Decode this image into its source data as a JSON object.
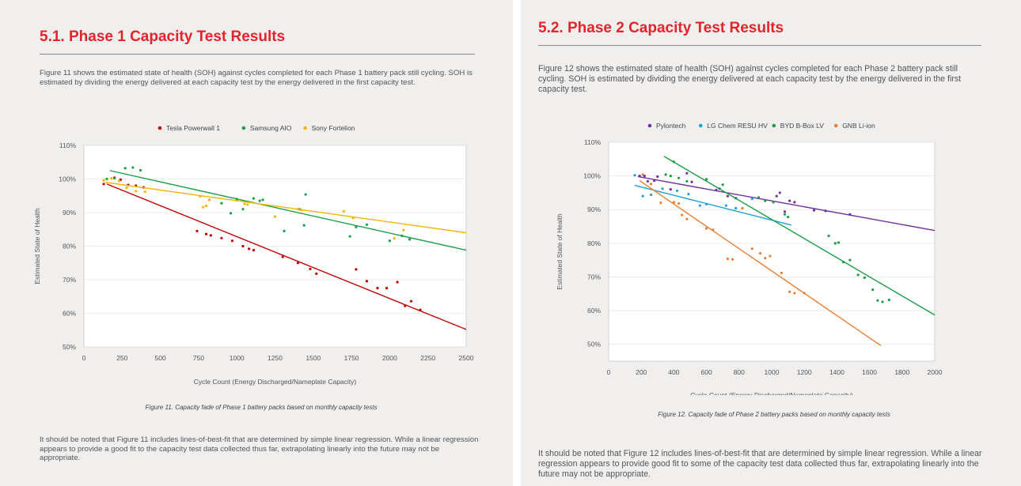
{
  "left": {
    "heading": "5.1. Phase 1 Capacity Test Results",
    "intro": "Figure 11 shows the estimated state of health (SOH) against cycles completed for each Phase 1 battery pack still cycling. SOH is estimated by dividing the energy delivered at each capacity test by the energy delivered in the first capacity test.",
    "caption": "Figure 11. Capacity fade of Phase 1 battery packs based on monthly capacity tests",
    "note": "It should be noted that Figure 11 includes lines-of-best-fit that are determined by simple linear regression. While a linear regression appears to provide a good fit to the capacity test data collected thus far, extrapolating linearly into the future may not be appropriate."
  },
  "right": {
    "heading": "5.2. Phase 2 Capacity Test Results",
    "intro": "Figure 12 shows the estimated state of health (SOH) against cycles completed for each Phase 2 battery pack still cycling. SOH is estimated by dividing the energy delivered at each capacity test by the energy delivered in the first capacity test.",
    "caption": "Figure 12. Capacity fade of Phase 2 battery packs based on monthly capacity tests",
    "note": "It should be noted that Figure 12 includes lines-of-best-fit that are determined by simple linear regression. While a linear regression appears to provide good fit to some of the capacity test data collected thus far, extrapolating linearly into the future may not be appropriate."
  },
  "chart_data": [
    {
      "type": "scatter",
      "title": "Figure 11",
      "xlabel": "Cycle Count (Energy Discharged/Nameplate Capacity)",
      "ylabel": "Estimated State of Health",
      "xlim": [
        0,
        2500
      ],
      "ylim": [
        50,
        110
      ],
      "xticks": [
        0,
        250,
        500,
        750,
        1000,
        1250,
        1500,
        1750,
        2000,
        2250,
        2500
      ],
      "xtick_labels": [
        "0",
        "250",
        "500",
        "750",
        "1000",
        "1250",
        "1500",
        "1750",
        "2000",
        "2250",
        "2500"
      ],
      "yticks": [
        50,
        60,
        70,
        80,
        90,
        100,
        110
      ],
      "ytick_labels": [
        "50%",
        "60%",
        "70%",
        "80%",
        "90%",
        "100%",
        "110%"
      ],
      "legend_position": "top",
      "series": [
        {
          "name": "Tesla Powerwall 1",
          "color": "#c00000",
          "fit": [
            [
              150,
              98.5
            ],
            [
              2500,
              55.2
            ]
          ],
          "points": [
            [
              130,
              98.5
            ],
            [
              200,
              100.4
            ],
            [
              240,
              99.8
            ],
            [
              290,
              98.2
            ],
            [
              340,
              98
            ],
            [
              390,
              97.5
            ],
            [
              740,
              84.5
            ],
            [
              800,
              83.6
            ],
            [
              830,
              83.2
            ],
            [
              900,
              82.4
            ],
            [
              970,
              81.6
            ],
            [
              1040,
              80
            ],
            [
              1080,
              79.2
            ],
            [
              1110,
              78.8
            ],
            [
              1300,
              76.8
            ],
            [
              1400,
              75
            ],
            [
              1480,
              73.2
            ],
            [
              1520,
              71.8
            ],
            [
              1780,
              73.1
            ],
            [
              1850,
              69.6
            ],
            [
              1920,
              67.5
            ],
            [
              1980,
              67.5
            ],
            [
              2050,
              69.3
            ],
            [
              2100,
              62.2
            ],
            [
              2140,
              63.6
            ],
            [
              2200,
              61
            ]
          ]
        },
        {
          "name": "Samsung AIO",
          "color": "#1a9e48",
          "fit": [
            [
              170,
              102.5
            ],
            [
              2500,
              78.8
            ]
          ],
          "points": [
            [
              150,
              100
            ],
            [
              200,
              100.2
            ],
            [
              270,
              103.2
            ],
            [
              320,
              103.4
            ],
            [
              370,
              102.6
            ],
            [
              900,
              92.8
            ],
            [
              960,
              89.8
            ],
            [
              1000,
              94
            ],
            [
              1040,
              91
            ],
            [
              1110,
              94.2
            ],
            [
              1150,
              93.5
            ],
            [
              1170,
              93.8
            ],
            [
              1310,
              84.5
            ],
            [
              1410,
              91
            ],
            [
              1440,
              86.2
            ],
            [
              1450,
              95.4
            ],
            [
              1740,
              82.9
            ],
            [
              1780,
              85.7
            ],
            [
              1850,
              86.4
            ],
            [
              2000,
              81.6
            ],
            [
              2080,
              83.1
            ],
            [
              2130,
              82
            ]
          ]
        },
        {
          "name": "Sony Fortelion",
          "color": "#f5b400",
          "fit": [
            [
              140,
              99
            ],
            [
              2500,
              84
            ]
          ],
          "points": [
            [
              130,
              99.6
            ],
            [
              180,
              100.2
            ],
            [
              230,
              99.4
            ],
            [
              280,
              97.4
            ],
            [
              340,
              96.4
            ],
            [
              400,
              96.2
            ],
            [
              760,
              94.8
            ],
            [
              780,
              91.6
            ],
            [
              800,
              92
            ],
            [
              820,
              93.8
            ],
            [
              1050,
              92.6
            ],
            [
              1070,
              92.4
            ],
            [
              1250,
              88.8
            ],
            [
              1400,
              91
            ],
            [
              1420,
              90.8
            ],
            [
              1700,
              90.4
            ],
            [
              1760,
              88.4
            ],
            [
              2030,
              82.3
            ],
            [
              2090,
              84.8
            ]
          ]
        }
      ]
    },
    {
      "type": "scatter",
      "title": "Figure 12",
      "xlabel": "Cycle Count (Energy Discharged/Nameplate Capacity)",
      "ylabel": "Estimated State of Health",
      "xlim": [
        0,
        2000
      ],
      "ylim": [
        45,
        110
      ],
      "xticks": [
        0,
        200,
        400,
        600,
        800,
        1000,
        1200,
        1400,
        1600,
        1800,
        2000
      ],
      "xtick_labels": [
        "0",
        "200",
        "400",
        "600",
        "800",
        "1000",
        "1200",
        "1400",
        "1600",
        "1800",
        "2000"
      ],
      "yticks": [
        50,
        60,
        70,
        80,
        90,
        100,
        110
      ],
      "ytick_labels": [
        "50%",
        "60%",
        "70%",
        "80%",
        "90%",
        "100%",
        "110%"
      ],
      "legend_position": "top",
      "series": [
        {
          "name": "Pylontech",
          "color": "#7030a0",
          "fit": [
            [
              180,
              99.8
            ],
            [
              2000,
              83.8
            ]
          ],
          "points": [
            [
              190,
              100
            ],
            [
              220,
              100
            ],
            [
              240,
              98.4
            ],
            [
              280,
              98.6
            ],
            [
              300,
              99.8
            ],
            [
              380,
              96
            ],
            [
              480,
              100.8
            ],
            [
              510,
              98.2
            ],
            [
              660,
              95.8
            ],
            [
              680,
              96.2
            ],
            [
              730,
              94
            ],
            [
              780,
              93.4
            ],
            [
              1030,
              94
            ],
            [
              1050,
              95
            ],
            [
              1080,
              89.4
            ],
            [
              1110,
              92.6
            ],
            [
              1140,
              92.2
            ],
            [
              1260,
              89.8
            ],
            [
              1330,
              89.6
            ],
            [
              1480,
              88.6
            ]
          ]
        },
        {
          "name": "LG Chem RESU HV",
          "color": "#1ea0dc",
          "fit": [
            [
              160,
              97.2
            ],
            [
              1120,
              85.4
            ]
          ],
          "points": [
            [
              160,
              100.2
            ],
            [
              210,
              94
            ],
            [
              260,
              94.4
            ],
            [
              330,
              96.2
            ],
            [
              420,
              95.6
            ],
            [
              490,
              94.6
            ],
            [
              560,
              91.2
            ],
            [
              600,
              91.6
            ],
            [
              720,
              91.2
            ],
            [
              780,
              90.4
            ],
            [
              880,
              93.2
            ]
          ]
        },
        {
          "name": "BYD B-Box LV",
          "color": "#1a9e48",
          "fit": [
            [
              340,
              105.8
            ],
            [
              2000,
              58.7
            ]
          ],
          "points": [
            [
              350,
              100.4
            ],
            [
              380,
              100
            ],
            [
              400,
              104.2
            ],
            [
              430,
              99.4
            ],
            [
              480,
              98.4
            ],
            [
              600,
              99
            ],
            [
              700,
              97.4
            ],
            [
              920,
              93.6
            ],
            [
              960,
              92.6
            ],
            [
              1010,
              92.2
            ],
            [
              1080,
              88.6
            ],
            [
              1100,
              87.8
            ],
            [
              1350,
              82.2
            ],
            [
              1390,
              80
            ],
            [
              1410,
              80.2
            ],
            [
              1440,
              74.4
            ],
            [
              1480,
              75
            ],
            [
              1530,
              70.6
            ],
            [
              1570,
              69.8
            ],
            [
              1620,
              66.2
            ],
            [
              1650,
              63
            ],
            [
              1680,
              62.6
            ],
            [
              1720,
              63.2
            ]
          ]
        },
        {
          "name": "GNB Li-ion",
          "color": "#ed7d31",
          "fit": [
            [
              190,
              98.6
            ],
            [
              1670,
              49.6
            ]
          ],
          "points": [
            [
              210,
              100.4
            ],
            [
              260,
              97.6
            ],
            [
              320,
              92
            ],
            [
              400,
              92.2
            ],
            [
              430,
              91.8
            ],
            [
              450,
              88.4
            ],
            [
              480,
              87.2
            ],
            [
              600,
              84.4
            ],
            [
              640,
              84
            ],
            [
              730,
              75.4
            ],
            [
              760,
              75.2
            ],
            [
              820,
              90.4
            ],
            [
              880,
              78.4
            ],
            [
              930,
              77
            ],
            [
              960,
              75.6
            ],
            [
              990,
              76.2
            ],
            [
              1060,
              71.2
            ],
            [
              1110,
              65.6
            ],
            [
              1140,
              65.2
            ],
            [
              1200,
              65.2
            ]
          ]
        }
      ]
    }
  ]
}
